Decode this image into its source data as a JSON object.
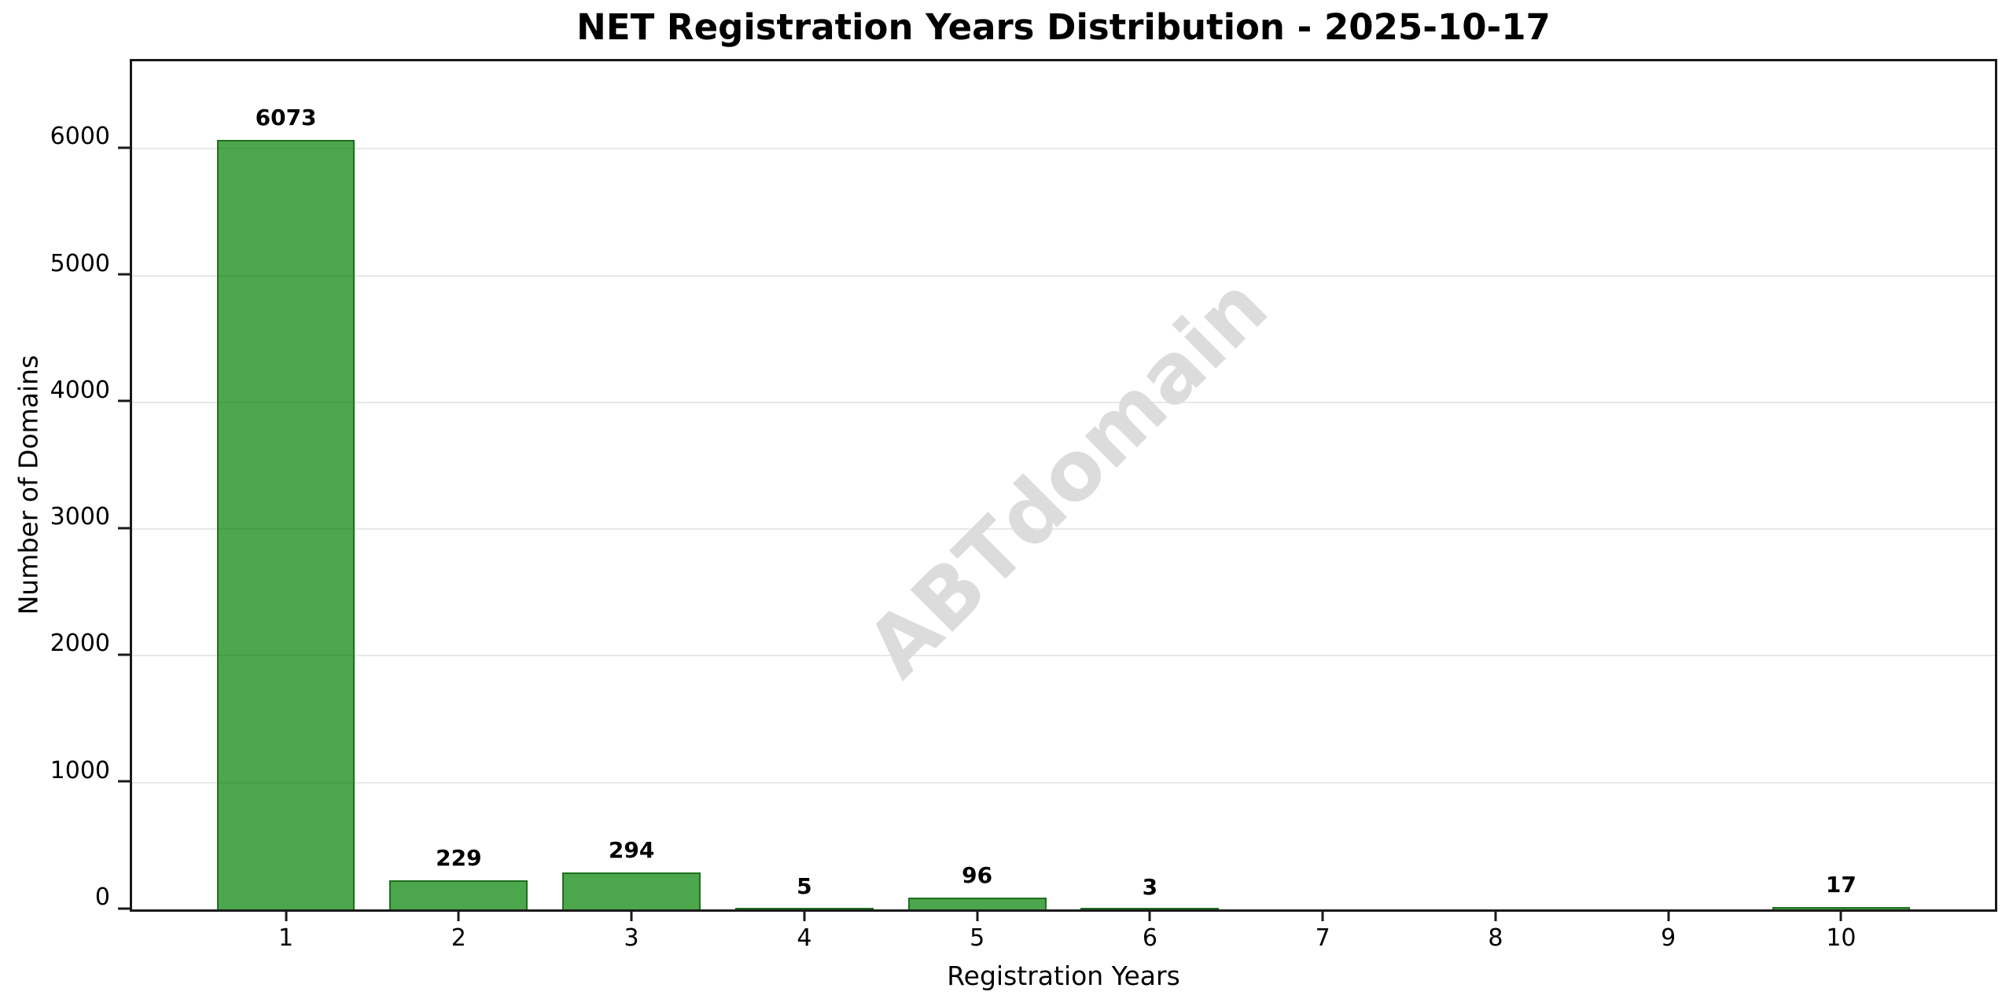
{
  "chart_data": {
    "type": "bar",
    "title": "NET Registration Years Distribution - 2025-10-17",
    "xlabel": "Registration Years",
    "ylabel": "Number of Domains",
    "categories": [
      "1",
      "2",
      "3",
      "4",
      "5",
      "6",
      "7",
      "8",
      "9",
      "10"
    ],
    "values": [
      6073,
      229,
      294,
      5,
      96,
      3,
      0,
      0,
      0,
      17
    ],
    "bar_value_labels": [
      "6073",
      "229",
      "294",
      "5",
      "96",
      "3",
      "",
      "",
      "",
      "17"
    ],
    "yticks": [
      0,
      1000,
      2000,
      3000,
      4000,
      5000,
      6000
    ],
    "ytick_labels": [
      "0",
      "1000",
      "2000",
      "3000",
      "4000",
      "5000",
      "6000"
    ],
    "ylim": [
      0,
      6690
    ],
    "xlim": [
      0.11,
      10.89
    ],
    "bar_width": 0.8,
    "grid": "horizontal-only",
    "legend_position": "none",
    "watermark": "ABTdomain",
    "colors": {
      "bar_fill": "rgba(0,128,0,0.7)",
      "bar_fill_hex": "#4CA54C",
      "bar_edge": "#1E701E",
      "gridline": "#E8E8E8",
      "watermark": "#DCDCDC",
      "text": "#000000",
      "plot_border": "#1A1A1A",
      "background": "#FFFFFF"
    }
  }
}
